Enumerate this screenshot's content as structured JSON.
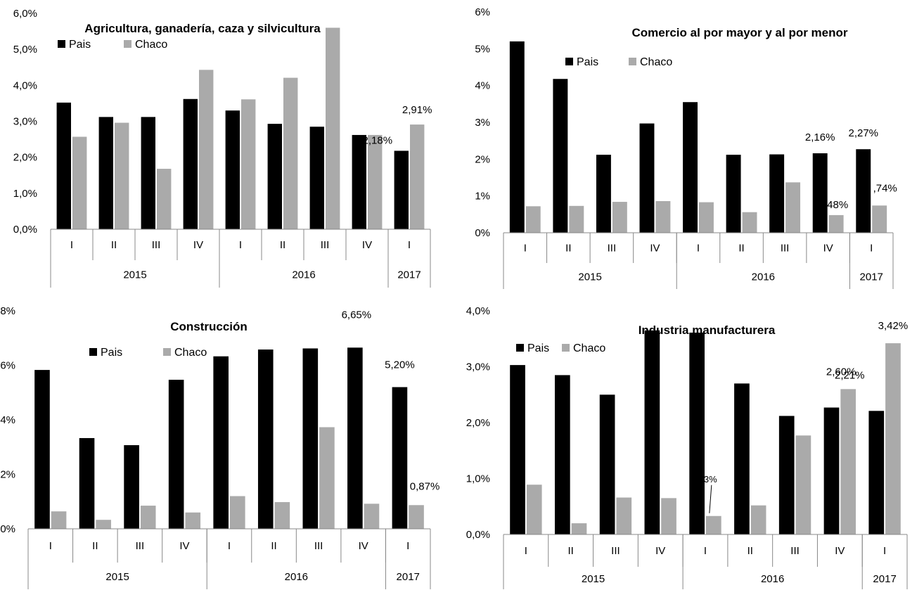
{
  "colors": {
    "pais": "#000000",
    "chaco": "#aaaaaa",
    "axis": "#888888"
  },
  "chart_data": [
    {
      "type": "bar",
      "title": "Agricultura, ganadería, caza y silvicultura",
      "categories": [
        "I",
        "II",
        "III",
        "IV",
        "I",
        "II",
        "III",
        "IV",
        "I"
      ],
      "year_groups": [
        {
          "label": "2015",
          "count": 4
        },
        {
          "label": "2016",
          "count": 4
        },
        {
          "label": "2017",
          "count": 1
        }
      ],
      "series": [
        {
          "name": "Pais",
          "values": [
            3.52,
            3.12,
            3.12,
            3.62,
            3.3,
            2.93,
            2.85,
            2.62,
            2.18
          ]
        },
        {
          "name": "Chaco",
          "values": [
            2.57,
            2.96,
            1.68,
            4.43,
            3.61,
            4.21,
            5.6,
            2.62,
            2.91
          ]
        }
      ],
      "ylim": [
        0,
        6
      ],
      "yticks": [
        0,
        1,
        2,
        3,
        4,
        5,
        6
      ],
      "ytick_labels": [
        "0,0%",
        "1,0%",
        "2,0%",
        "3,0%",
        "4,0%",
        "5,0%",
        "6,0%"
      ],
      "legend": {
        "items": [
          "Pais",
          "Chaco"
        ]
      },
      "data_labels": [
        {
          "series": 1,
          "index": 8,
          "text": "2,91%"
        },
        {
          "series": 0,
          "index": 8,
          "text": "2,18%"
        }
      ]
    },
    {
      "type": "bar",
      "title": "Comercio al por mayor y al por menor",
      "categories": [
        "I",
        "II",
        "III",
        "IV",
        "I",
        "II",
        "III",
        "IV",
        "I"
      ],
      "year_groups": [
        {
          "label": "2015",
          "count": 4
        },
        {
          "label": "2016",
          "count": 4
        },
        {
          "label": "2017",
          "count": 1
        }
      ],
      "series": [
        {
          "name": "Pais",
          "values": [
            5.2,
            4.18,
            2.12,
            2.97,
            3.55,
            2.12,
            2.13,
            2.16,
            2.27
          ]
        },
        {
          "name": "Chaco",
          "values": [
            0.72,
            0.73,
            0.84,
            0.86,
            0.83,
            0.56,
            1.37,
            0.48,
            0.74
          ]
        }
      ],
      "ylim": [
        0,
        6
      ],
      "yticks": [
        0,
        1,
        2,
        3,
        4,
        5,
        6
      ],
      "ytick_labels": [
        "0%",
        "1%",
        "2%",
        "3%",
        "4%",
        "5%",
        "6%"
      ],
      "legend": {
        "items": [
          "Pais",
          "Chaco"
        ]
      },
      "data_labels": [
        {
          "series": 0,
          "index": 7,
          "text": "2,16%"
        },
        {
          "series": 0,
          "index": 8,
          "text": "2,27%"
        },
        {
          "series": 1,
          "index": 7,
          "text": ",48%"
        },
        {
          "series": 1,
          "index": 8,
          "text": ",74%"
        }
      ]
    },
    {
      "type": "bar",
      "title": "Construcción",
      "categories": [
        "I",
        "II",
        "III",
        "IV",
        "I",
        "II",
        "III",
        "IV",
        "I"
      ],
      "year_groups": [
        {
          "label": "2015",
          "count": 4
        },
        {
          "label": "2016",
          "count": 4
        },
        {
          "label": "2017",
          "count": 1
        }
      ],
      "series": [
        {
          "name": "Pais",
          "values": [
            5.83,
            3.33,
            3.07,
            5.47,
            6.33,
            6.58,
            6.62,
            6.65,
            5.2
          ]
        },
        {
          "name": "Chaco",
          "values": [
            0.64,
            0.33,
            0.85,
            0.6,
            1.2,
            0.98,
            3.73,
            0.92,
            0.87
          ]
        }
      ],
      "ylim": [
        0,
        8
      ],
      "yticks": [
        0,
        2,
        4,
        6,
        8
      ],
      "ytick_labels": [
        "0%",
        "2%",
        "4%",
        "6%",
        "8%"
      ],
      "legend": {
        "items": [
          "Pais",
          "Chaco"
        ]
      },
      "data_labels": [
        {
          "series": 0,
          "index": 7,
          "text": "6,65%"
        },
        {
          "series": 0,
          "index": 8,
          "text": "5,20%"
        },
        {
          "series": 1,
          "index": 8,
          "text": "0,87%"
        }
      ]
    },
    {
      "type": "bar",
      "title": "Industria manufacturera",
      "categories": [
        "I",
        "II",
        "III",
        "IV",
        "I",
        "II",
        "III",
        "IV",
        "I"
      ],
      "year_groups": [
        {
          "label": "2015",
          "count": 4
        },
        {
          "label": "2016",
          "count": 4
        },
        {
          "label": "2017",
          "count": 1
        }
      ],
      "series": [
        {
          "name": "Pais",
          "values": [
            3.03,
            2.85,
            2.5,
            3.65,
            3.61,
            2.7,
            2.12,
            2.27,
            2.21
          ]
        },
        {
          "name": "Chaco",
          "values": [
            0.89,
            0.2,
            0.66,
            0.65,
            0.33,
            0.52,
            1.77,
            2.6,
            3.42
          ]
        }
      ],
      "ylim": [
        0,
        4
      ],
      "yticks": [
        0,
        1,
        2,
        3,
        4
      ],
      "ytick_labels": [
        "0,0%",
        "1,0%",
        "2,0%",
        "3,0%",
        "4,0%"
      ],
      "legend": {
        "items": [
          "Pais",
          "Chaco"
        ]
      },
      "data_labels": [
        {
          "series": 1,
          "index": 4,
          "text": "0,3%"
        },
        {
          "series": 1,
          "index": 7,
          "text": "2,60%"
        },
        {
          "series": 1,
          "index": 8,
          "text": "3,42%"
        },
        {
          "series": 0,
          "index": 8,
          "text": "2,21%"
        }
      ]
    }
  ]
}
